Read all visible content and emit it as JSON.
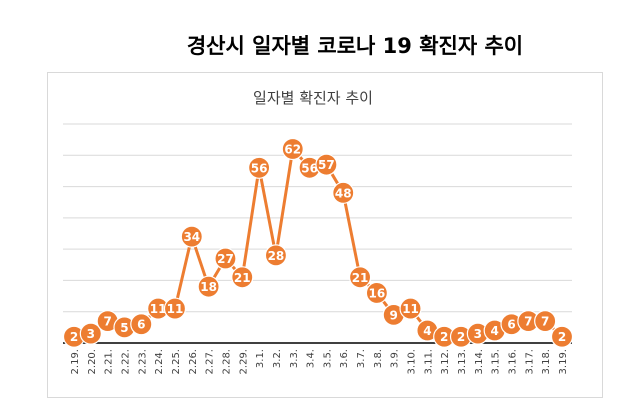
{
  "page": {
    "title": "경산시  일자별  코로나  19  확진자  추이"
  },
  "colors": {
    "series": "#ed7d31",
    "label_text": "#ffffff",
    "grid": "#d9d9d9",
    "axis": "#000000"
  },
  "chart_data": {
    "type": "line",
    "title": "일자별 확진자 추이",
    "xlabel": "",
    "ylabel": "",
    "ylim": [
      0,
      70
    ],
    "grid": true,
    "legend": "none",
    "categories": [
      "2.19.",
      "2.20.",
      "2.21.",
      "2.22.",
      "2.23.",
      "2.24.",
      "2.25.",
      "2.26.",
      "2.27.",
      "2.28.",
      "2.29.",
      "3.1.",
      "3.2.",
      "3.3.",
      "3.4.",
      "3.5.",
      "3.6.",
      "3.7.",
      "3.8.",
      "3.9.",
      "3.10.",
      "3.11.",
      "3.12.",
      "3.13.",
      "3.14.",
      "3.15.",
      "3.16.",
      "3.17.",
      "3.18.",
      "3.19."
    ],
    "series": [
      {
        "name": "",
        "values": [
          2,
          3,
          7,
          5,
          6,
          11,
          11,
          34,
          18,
          27,
          21,
          56,
          28,
          62,
          56,
          57,
          48,
          21,
          16,
          9,
          11,
          4,
          2,
          2,
          3,
          4,
          6,
          7,
          7,
          2
        ]
      }
    ]
  }
}
